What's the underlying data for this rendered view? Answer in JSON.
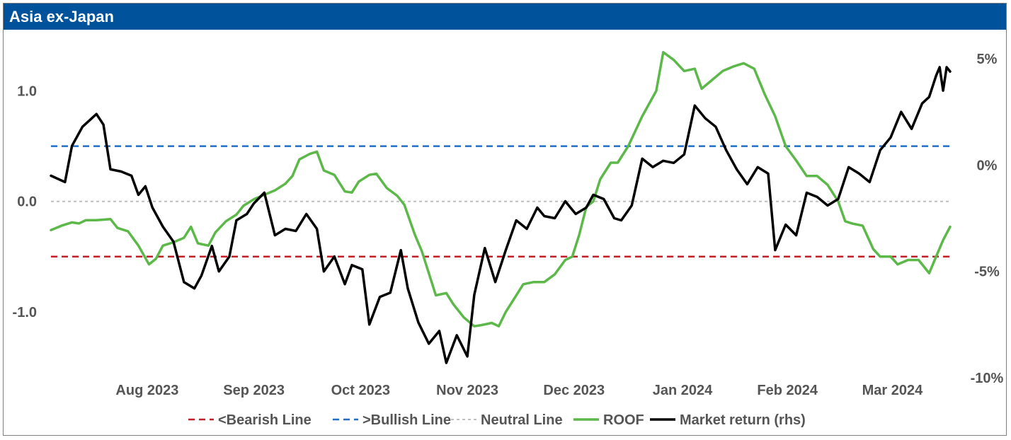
{
  "title": "Asia ex-Japan",
  "chart_data": {
    "type": "line",
    "title": "Asia ex-Japan",
    "colors": {
      "bearish": "#c0202a",
      "bullish": "#1f6fc5",
      "neutral": "#bfbfbf",
      "roof": "#5cb849",
      "market": "#000000",
      "header": "#00539b"
    },
    "x_ticks": [
      "Aug 2023",
      "Sep 2023",
      "Oct 2023",
      "Nov 2023",
      "Dec 2023",
      "Jan 2024",
      "Feb 2024",
      "Mar 2024"
    ],
    "x_range": [
      "2023-07-20",
      "2024-04-02"
    ],
    "y_left": {
      "ticks": [
        "1.0",
        "0.0",
        "-1.0"
      ],
      "tick_values": [
        1.0,
        0.0,
        -1.0
      ],
      "ylim": [
        -1.5,
        1.4
      ]
    },
    "y_right": {
      "ticks": [
        "5%",
        "0%",
        "-5%",
        "-10%"
      ],
      "tick_values": [
        5,
        0,
        -5,
        -10
      ],
      "ylim": [
        -10,
        5.2
      ]
    },
    "legend": [
      "<Bearish Line",
      ">Bullish Line",
      "Neutral Line",
      "ROOF",
      "Market return (rhs)"
    ],
    "series": [
      {
        "name": "<Bearish Line",
        "axis": "left",
        "style": "dashed",
        "constant": -0.5
      },
      {
        "name": ">Bullish Line",
        "axis": "left",
        "style": "dashed",
        "constant": 0.5
      },
      {
        "name": "Neutral Line",
        "axis": "left",
        "style": "dotted",
        "constant": 0.0
      },
      {
        "name": "ROOF",
        "axis": "left",
        "points": [
          [
            "2023-07-20",
            -0.26
          ],
          [
            "2023-07-23",
            -0.22
          ],
          [
            "2023-07-26",
            -0.19
          ],
          [
            "2023-07-28",
            -0.2
          ],
          [
            "2023-07-30",
            -0.17
          ],
          [
            "2023-08-02",
            -0.17
          ],
          [
            "2023-08-06",
            -0.16
          ],
          [
            "2023-08-08",
            -0.24
          ],
          [
            "2023-08-11",
            -0.27
          ],
          [
            "2023-08-14",
            -0.4
          ],
          [
            "2023-08-17",
            -0.57
          ],
          [
            "2023-08-19",
            -0.52
          ],
          [
            "2023-08-21",
            -0.4
          ],
          [
            "2023-08-24",
            -0.37
          ],
          [
            "2023-08-27",
            -0.33
          ],
          [
            "2023-08-29",
            -0.23
          ],
          [
            "2023-08-31",
            -0.38
          ],
          [
            "2023-09-03",
            -0.4
          ],
          [
            "2023-09-05",
            -0.28
          ],
          [
            "2023-09-08",
            -0.18
          ],
          [
            "2023-09-11",
            -0.12
          ],
          [
            "2023-09-13",
            -0.04
          ],
          [
            "2023-09-16",
            0.02
          ],
          [
            "2023-09-19",
            0.06
          ],
          [
            "2023-09-22",
            0.1
          ],
          [
            "2023-09-25",
            0.16
          ],
          [
            "2023-09-27",
            0.23
          ],
          [
            "2023-09-29",
            0.38
          ],
          [
            "2023-10-02",
            0.43
          ],
          [
            "2023-10-04",
            0.45
          ],
          [
            "2023-10-06",
            0.28
          ],
          [
            "2023-10-09",
            0.24
          ],
          [
            "2023-10-12",
            0.09
          ],
          [
            "2023-10-14",
            0.08
          ],
          [
            "2023-10-16",
            0.18
          ],
          [
            "2023-10-19",
            0.24
          ],
          [
            "2023-10-21",
            0.25
          ],
          [
            "2023-10-24",
            0.12
          ],
          [
            "2023-10-27",
            0.05
          ],
          [
            "2023-10-29",
            -0.03
          ],
          [
            "2023-11-01",
            -0.3
          ],
          [
            "2023-11-03",
            -0.45
          ],
          [
            "2023-11-05",
            -0.65
          ],
          [
            "2023-11-07",
            -0.85
          ],
          [
            "2023-11-10",
            -0.83
          ],
          [
            "2023-11-12",
            -0.93
          ],
          [
            "2023-11-15",
            -1.05
          ],
          [
            "2023-11-18",
            -1.13
          ],
          [
            "2023-11-20",
            -1.12
          ],
          [
            "2023-11-23",
            -1.1
          ],
          [
            "2023-11-25",
            -1.13
          ],
          [
            "2023-11-27",
            -1.0
          ],
          [
            "2023-11-29",
            -0.9
          ],
          [
            "2023-12-02",
            -0.75
          ],
          [
            "2023-12-05",
            -0.73
          ],
          [
            "2023-12-08",
            -0.73
          ],
          [
            "2023-12-11",
            -0.66
          ],
          [
            "2023-12-14",
            -0.53
          ],
          [
            "2023-12-16",
            -0.5
          ],
          [
            "2023-12-18",
            -0.3
          ],
          [
            "2023-12-20",
            -0.05
          ],
          [
            "2023-12-22",
            0.0
          ],
          [
            "2023-12-24",
            0.2
          ],
          [
            "2023-12-27",
            0.35
          ],
          [
            "2023-12-29",
            0.35
          ],
          [
            "2024-01-01",
            0.5
          ],
          [
            "2024-01-05",
            0.77
          ],
          [
            "2024-01-09",
            1.0
          ],
          [
            "2024-01-11",
            1.35
          ],
          [
            "2024-01-14",
            1.28
          ],
          [
            "2024-01-17",
            1.18
          ],
          [
            "2024-01-20",
            1.2
          ],
          [
            "2024-01-22",
            1.02
          ],
          [
            "2024-01-25",
            1.1
          ],
          [
            "2024-01-28",
            1.18
          ],
          [
            "2024-01-31",
            1.22
          ],
          [
            "2024-02-03",
            1.25
          ],
          [
            "2024-02-06",
            1.2
          ],
          [
            "2024-02-09",
            0.97
          ],
          [
            "2024-02-12",
            0.77
          ],
          [
            "2024-02-15",
            0.5
          ],
          [
            "2024-02-18",
            0.37
          ],
          [
            "2024-02-21",
            0.23
          ],
          [
            "2024-02-24",
            0.23
          ],
          [
            "2024-02-27",
            0.15
          ],
          [
            "2024-03-01",
            0.0
          ],
          [
            "2024-03-03",
            -0.18
          ],
          [
            "2024-03-05",
            -0.2
          ],
          [
            "2024-03-08",
            -0.22
          ],
          [
            "2024-03-11",
            -0.43
          ],
          [
            "2024-03-13",
            -0.5
          ],
          [
            "2024-03-16",
            -0.5
          ],
          [
            "2024-03-18",
            -0.57
          ],
          [
            "2024-03-21",
            -0.53
          ],
          [
            "2024-03-24",
            -0.53
          ],
          [
            "2024-03-27",
            -0.65
          ],
          [
            "2024-03-29",
            -0.5
          ],
          [
            "2024-03-31",
            -0.35
          ],
          [
            "2024-04-02",
            -0.23
          ]
        ]
      },
      {
        "name": "Market return (rhs)",
        "axis": "right",
        "points": [
          [
            "2023-07-20",
            -0.5
          ],
          [
            "2023-07-24",
            -0.8
          ],
          [
            "2023-07-26",
            0.9
          ],
          [
            "2023-07-29",
            1.8
          ],
          [
            "2023-08-02",
            2.4
          ],
          [
            "2023-08-04",
            1.9
          ],
          [
            "2023-08-06",
            -0.2
          ],
          [
            "2023-08-09",
            -0.3
          ],
          [
            "2023-08-12",
            -0.5
          ],
          [
            "2023-08-14",
            -1.4
          ],
          [
            "2023-08-16",
            -1.0
          ],
          [
            "2023-08-18",
            -2.0
          ],
          [
            "2023-08-21",
            -2.9
          ],
          [
            "2023-08-24",
            -3.6
          ],
          [
            "2023-08-27",
            -5.5
          ],
          [
            "2023-08-30",
            -5.8
          ],
          [
            "2023-09-01",
            -5.2
          ],
          [
            "2023-09-04",
            -3.8
          ],
          [
            "2023-09-06",
            -5.0
          ],
          [
            "2023-09-09",
            -4.3
          ],
          [
            "2023-09-11",
            -2.6
          ],
          [
            "2023-09-14",
            -2.3
          ],
          [
            "2023-09-16",
            -1.8
          ],
          [
            "2023-09-19",
            -1.3
          ],
          [
            "2023-09-22",
            -3.3
          ],
          [
            "2023-09-25",
            -3.0
          ],
          [
            "2023-09-28",
            -3.1
          ],
          [
            "2023-10-01",
            -2.3
          ],
          [
            "2023-10-04",
            -3.0
          ],
          [
            "2023-10-06",
            -5.0
          ],
          [
            "2023-10-09",
            -4.3
          ],
          [
            "2023-10-12",
            -5.6
          ],
          [
            "2023-10-14",
            -4.7
          ],
          [
            "2023-10-17",
            -4.9
          ],
          [
            "2023-10-19",
            -7.5
          ],
          [
            "2023-10-22",
            -6.2
          ],
          [
            "2023-10-25",
            -6.0
          ],
          [
            "2023-10-28",
            -4.0
          ],
          [
            "2023-10-30",
            -5.8
          ],
          [
            "2023-11-02",
            -7.4
          ],
          [
            "2023-11-05",
            -8.4
          ],
          [
            "2023-11-08",
            -7.8
          ],
          [
            "2023-11-10",
            -9.3
          ],
          [
            "2023-11-13",
            -8.0
          ],
          [
            "2023-11-16",
            -9.0
          ],
          [
            "2023-11-18",
            -6.1
          ],
          [
            "2023-11-21",
            -3.9
          ],
          [
            "2023-11-24",
            -5.5
          ],
          [
            "2023-11-27",
            -4.0
          ],
          [
            "2023-11-30",
            -2.6
          ],
          [
            "2023-12-03",
            -3.0
          ],
          [
            "2023-12-06",
            -2.0
          ],
          [
            "2023-12-08",
            -2.4
          ],
          [
            "2023-12-11",
            -2.5
          ],
          [
            "2023-12-14",
            -1.7
          ],
          [
            "2023-12-17",
            -2.3
          ],
          [
            "2023-12-20",
            -2.0
          ],
          [
            "2023-12-22",
            -1.4
          ],
          [
            "2023-12-25",
            -1.6
          ],
          [
            "2023-12-28",
            -2.5
          ],
          [
            "2023-12-30",
            -2.6
          ],
          [
            "2024-01-02",
            -1.9
          ],
          [
            "2024-01-05",
            0.3
          ],
          [
            "2024-01-08",
            -0.1
          ],
          [
            "2024-01-11",
            0.2
          ],
          [
            "2024-01-14",
            0.1
          ],
          [
            "2024-01-17",
            0.5
          ],
          [
            "2024-01-20",
            2.8
          ],
          [
            "2024-01-23",
            2.2
          ],
          [
            "2024-01-26",
            1.8
          ],
          [
            "2024-01-29",
            0.7
          ],
          [
            "2024-02-01",
            -0.2
          ],
          [
            "2024-02-04",
            -0.9
          ],
          [
            "2024-02-07",
            -0.1
          ],
          [
            "2024-02-10",
            -0.4
          ],
          [
            "2024-02-12",
            -4.0
          ],
          [
            "2024-02-15",
            -2.8
          ],
          [
            "2024-02-18",
            -3.3
          ],
          [
            "2024-02-21",
            -1.3
          ],
          [
            "2024-02-24",
            -1.5
          ],
          [
            "2024-02-27",
            -1.9
          ],
          [
            "2024-03-01",
            -1.6
          ],
          [
            "2024-03-04",
            -0.1
          ],
          [
            "2024-03-07",
            -0.4
          ],
          [
            "2024-03-10",
            -0.8
          ],
          [
            "2024-03-13",
            0.7
          ],
          [
            "2024-03-16",
            1.3
          ],
          [
            "2024-03-19",
            2.5
          ],
          [
            "2024-03-22",
            1.7
          ],
          [
            "2024-03-25",
            2.9
          ],
          [
            "2024-03-27",
            3.2
          ],
          [
            "2024-03-29",
            4.2
          ],
          [
            "2024-03-30",
            4.6
          ],
          [
            "2024-03-31",
            3.5
          ],
          [
            "2024-04-01",
            4.6
          ],
          [
            "2024-04-02",
            4.4
          ]
        ]
      }
    ]
  }
}
